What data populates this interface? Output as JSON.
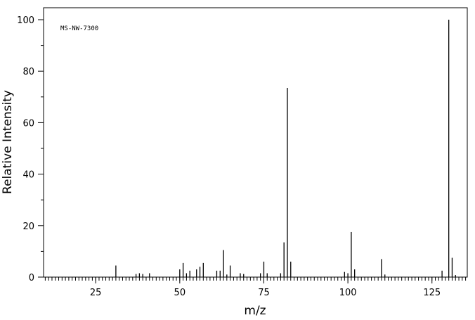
{
  "chart_data": {
    "type": "bar",
    "title": "",
    "annotation": "MS-NW-7300",
    "xlabel": "m/z",
    "ylabel": "Relative Intensity",
    "xlim": [
      9.5,
      135.5
    ],
    "ylim": [
      0,
      100
    ],
    "x_ticks": [
      25,
      50,
      75,
      100,
      125
    ],
    "y_ticks": [
      0,
      20,
      40,
      60,
      80,
      100
    ],
    "grid": false,
    "legend": "none",
    "color": "#000000",
    "peaks": [
      {
        "mz": 31,
        "intensity": 4.5
      },
      {
        "mz": 37,
        "intensity": 1.2
      },
      {
        "mz": 38,
        "intensity": 1.5
      },
      {
        "mz": 39,
        "intensity": 1.2
      },
      {
        "mz": 41,
        "intensity": 1.5
      },
      {
        "mz": 50,
        "intensity": 3.0
      },
      {
        "mz": 51,
        "intensity": 5.5
      },
      {
        "mz": 52,
        "intensity": 1.5
      },
      {
        "mz": 53,
        "intensity": 2.5
      },
      {
        "mz": 55,
        "intensity": 3.0
      },
      {
        "mz": 56,
        "intensity": 4.0
      },
      {
        "mz": 57,
        "intensity": 5.5
      },
      {
        "mz": 61,
        "intensity": 2.5
      },
      {
        "mz": 62,
        "intensity": 2.5
      },
      {
        "mz": 63,
        "intensity": 10.5
      },
      {
        "mz": 64,
        "intensity": 1.0
      },
      {
        "mz": 65,
        "intensity": 4.5
      },
      {
        "mz": 68,
        "intensity": 1.5
      },
      {
        "mz": 69,
        "intensity": 1.2
      },
      {
        "mz": 74,
        "intensity": 1.5
      },
      {
        "mz": 75,
        "intensity": 6.0
      },
      {
        "mz": 76,
        "intensity": 1.5
      },
      {
        "mz": 80,
        "intensity": 1.5
      },
      {
        "mz": 81,
        "intensity": 13.5
      },
      {
        "mz": 82,
        "intensity": 73.5
      },
      {
        "mz": 83,
        "intensity": 6.0
      },
      {
        "mz": 99,
        "intensity": 2.0
      },
      {
        "mz": 100,
        "intensity": 1.5
      },
      {
        "mz": 101,
        "intensity": 17.5
      },
      {
        "mz": 102,
        "intensity": 3.0
      },
      {
        "mz": 110,
        "intensity": 7.0
      },
      {
        "mz": 111,
        "intensity": 1.0
      },
      {
        "mz": 128,
        "intensity": 2.5
      },
      {
        "mz": 130,
        "intensity": 100
      },
      {
        "mz": 131,
        "intensity": 7.5
      },
      {
        "mz": 132,
        "intensity": 0.8
      }
    ]
  }
}
